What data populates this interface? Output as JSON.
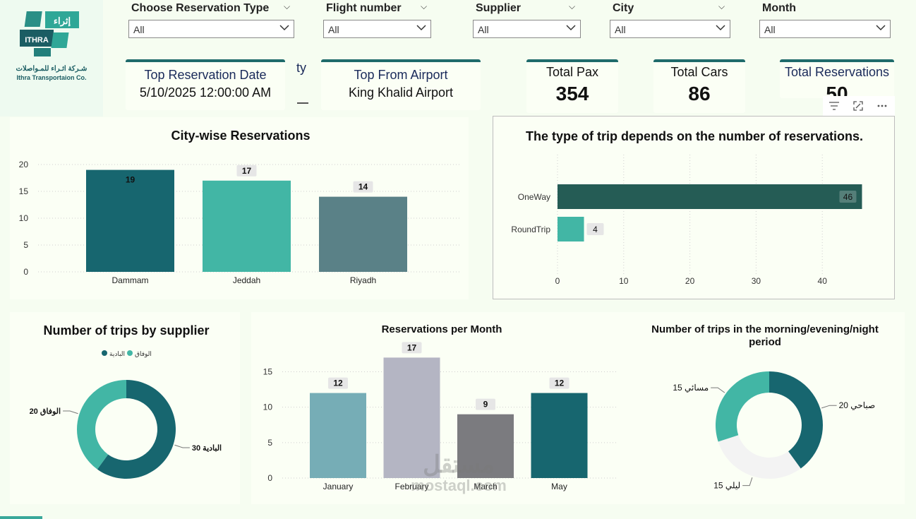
{
  "logo": {
    "brand_ar": "إثراء",
    "brand_en": "ITHRA",
    "company_ar": "شـركة اثـراء للمـواصلات",
    "company_en": "Ithra Transportaion Co."
  },
  "filters": [
    {
      "label": "Choose Reservation Type",
      "value": "All"
    },
    {
      "label": "Flight number",
      "value": "All"
    },
    {
      "label": "Supplier",
      "value": "All"
    },
    {
      "label": "City",
      "value": "All"
    },
    {
      "label": "Month",
      "value": "All"
    }
  ],
  "cards": {
    "top_date": {
      "title": "Top Reservation Date",
      "value": "5/10/2025 12:00:00 AM"
    },
    "partial_text": "ty",
    "top_airport": {
      "title": "Top From Airport",
      "value": "King Khalid Airport"
    },
    "pax": {
      "title": "Total Pax",
      "value": "354"
    },
    "cars": {
      "title": "Total Cars",
      "value": "86"
    },
    "reservations": {
      "title": "Total Reservations",
      "value": "50"
    }
  },
  "visual_toolbar": [
    "filter-icon",
    "focus-mode-icon",
    "more-options-icon"
  ],
  "colors": {
    "teal_dark": "#17666f",
    "teal": "#42b6a5",
    "slate": "#5a8187",
    "forest": "#255c55",
    "light_blue": "#76adb6",
    "lavender": "#b4b5c3",
    "gray": "#7b7b7f",
    "pale": "#f3f3f3"
  },
  "watermark": {
    "ar": "مستقل",
    "en": "mostaql.com"
  },
  "chart_data": [
    {
      "type": "bar",
      "title": "City-wise Reservations",
      "categories": [
        "Dammam",
        "Jeddah",
        "Riyadh"
      ],
      "values": [
        19,
        17,
        14
      ],
      "ylim": [
        0,
        20
      ],
      "yticks": [
        0,
        5,
        10,
        15,
        20
      ],
      "grid": true
    },
    {
      "type": "bar",
      "orientation": "horizontal",
      "title": "The type of trip depends on the number of reservations.",
      "categories": [
        "OneWay",
        "RoundTrip"
      ],
      "values": [
        46,
        4
      ],
      "xticks": [
        0,
        10,
        20,
        30,
        40
      ],
      "grid": true
    },
    {
      "type": "pie",
      "donut": true,
      "title": "Number of trips by supplier",
      "legend": [
        "البادية",
        "الوفاق"
      ],
      "legend_position": "top",
      "slices": [
        {
          "name": "البادية",
          "value": 30,
          "label": "30 البادية"
        },
        {
          "name": "الوفاق",
          "value": 20,
          "label": "20 الوفاق"
        }
      ]
    },
    {
      "type": "bar",
      "title": "Reservations per Month",
      "categories": [
        "January",
        "February",
        "March",
        "May"
      ],
      "values": [
        12,
        17,
        9,
        12
      ],
      "ylim": [
        0,
        17
      ],
      "yticks": [
        0,
        5,
        10,
        15
      ],
      "grid": true
    },
    {
      "type": "pie",
      "donut": true,
      "title": "Number of trips in the morning/evening/night period",
      "slices": [
        {
          "name": "صباحي",
          "value": 20,
          "label": "20 صباحي"
        },
        {
          "name": "ليلي",
          "value": 15,
          "label": "15 ليلي"
        },
        {
          "name": "مسائي",
          "value": 15,
          "label": "15 مسائي"
        }
      ]
    }
  ]
}
